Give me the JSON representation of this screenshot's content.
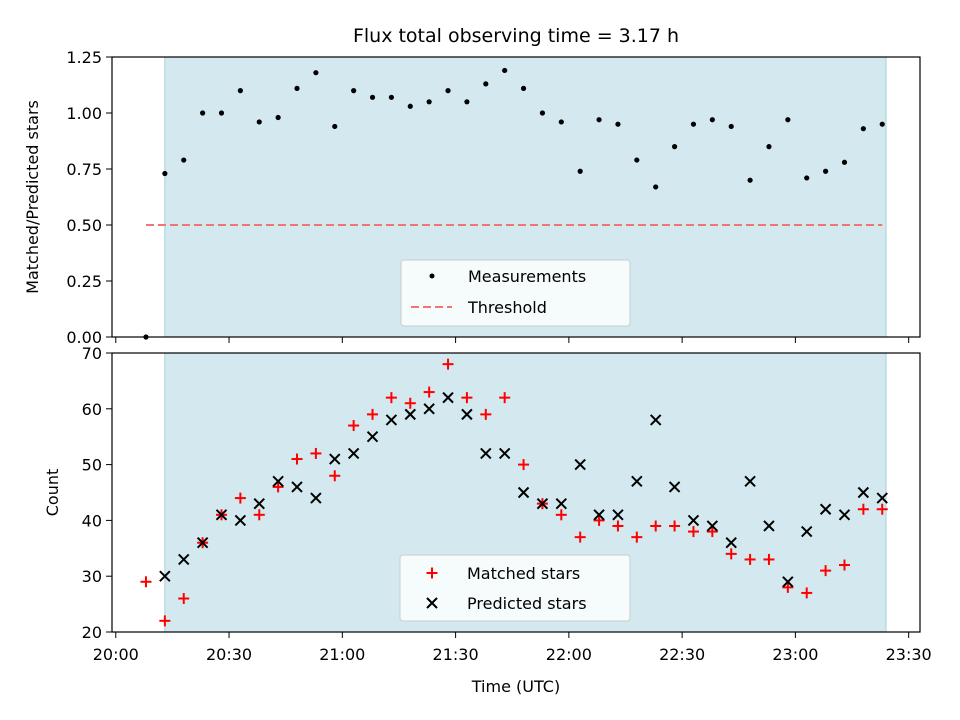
{
  "chart_data": [
    {
      "type": "scatter",
      "title": "Flux total observing time = 3.17 h",
      "xlabel": "",
      "ylabel": "Matched/Predicted stars",
      "ylim": [
        0,
        1.25
      ],
      "yticks": [
        "0.00",
        "0.25",
        "0.50",
        "0.75",
        "1.00",
        "1.25"
      ],
      "xlim": [
        "20:00",
        "23:30"
      ],
      "observing_span": [
        "20:13",
        "23:24"
      ],
      "colors": {
        "span": "#d3e9ef",
        "measurements": "#000000",
        "threshold": "#f07575"
      },
      "series": [
        {
          "name": "Measurements",
          "x": [
            "20:08",
            "20:13",
            "20:18",
            "20:23",
            "20:28",
            "20:33",
            "20:38",
            "20:43",
            "20:48",
            "20:53",
            "20:58",
            "21:03",
            "21:08",
            "21:13",
            "21:18",
            "21:23",
            "21:28",
            "21:33",
            "21:38",
            "21:43",
            "21:48",
            "21:53",
            "21:58",
            "22:03",
            "22:08",
            "22:13",
            "22:18",
            "22:23",
            "22:28",
            "22:33",
            "22:38",
            "22:43",
            "22:48",
            "22:53",
            "22:58",
            "23:03",
            "23:08",
            "23:13",
            "23:18",
            "23:23"
          ],
          "y": [
            0.0,
            0.73,
            0.79,
            1.0,
            1.0,
            1.1,
            0.96,
            0.98,
            1.11,
            1.18,
            0.94,
            1.1,
            1.07,
            1.07,
            1.03,
            1.05,
            1.1,
            1.05,
            1.13,
            1.19,
            1.11,
            1.0,
            0.96,
            0.74,
            0.97,
            0.95,
            0.79,
            0.67,
            0.85,
            0.95,
            0.97,
            0.94,
            0.7,
            0.85,
            0.97,
            0.71,
            0.74,
            0.78,
            0.93,
            0.95
          ]
        },
        {
          "name": "Threshold",
          "x": [
            "20:08",
            "23:23"
          ],
          "y": [
            0.5,
            0.5
          ]
        }
      ],
      "legend": {
        "placement": "bottom-center",
        "entries": [
          "Measurements",
          "Threshold"
        ]
      }
    },
    {
      "type": "scatter",
      "title": "",
      "xlabel": "Time (UTC)",
      "ylabel": "Count",
      "ylim": [
        20,
        70
      ],
      "yticks": [
        "20",
        "30",
        "40",
        "50",
        "60",
        "70"
      ],
      "xlim": [
        "20:00",
        "23:30"
      ],
      "xticks": [
        "20:00",
        "20:30",
        "21:00",
        "21:30",
        "22:00",
        "22:30",
        "23:00",
        "23:30"
      ],
      "observing_span": [
        "20:13",
        "23:24"
      ],
      "colors": {
        "span": "#d3e9ef",
        "matched": "#ff0000",
        "predicted": "#000000"
      },
      "series": [
        {
          "name": "Matched stars",
          "x": [
            "20:08",
            "20:13",
            "20:18",
            "20:23",
            "20:28",
            "20:33",
            "20:38",
            "20:43",
            "20:48",
            "20:53",
            "20:58",
            "21:03",
            "21:08",
            "21:13",
            "21:18",
            "21:23",
            "21:28",
            "21:33",
            "21:38",
            "21:43",
            "21:48",
            "21:53",
            "21:58",
            "22:03",
            "22:08",
            "22:13",
            "22:18",
            "22:23",
            "22:28",
            "22:33",
            "22:38",
            "22:43",
            "22:48",
            "22:53",
            "22:58",
            "23:03",
            "23:08",
            "23:13",
            "23:18",
            "23:23"
          ],
          "y": [
            29,
            22,
            26,
            36,
            41,
            44,
            41,
            46,
            51,
            52,
            48,
            57,
            59,
            62,
            61,
            63,
            68,
            62,
            59,
            62,
            50,
            43,
            41,
            37,
            40,
            39,
            37,
            39,
            39,
            38,
            38,
            34,
            33,
            33,
            28,
            27,
            31,
            32,
            42,
            42
          ]
        },
        {
          "name": "Predicted stars",
          "x": [
            "20:13",
            "20:18",
            "20:23",
            "20:28",
            "20:33",
            "20:38",
            "20:43",
            "20:48",
            "20:53",
            "20:58",
            "21:03",
            "21:08",
            "21:13",
            "21:18",
            "21:23",
            "21:28",
            "21:33",
            "21:38",
            "21:43",
            "21:48",
            "21:53",
            "21:58",
            "22:03",
            "22:08",
            "22:13",
            "22:18",
            "22:23",
            "22:28",
            "22:33",
            "22:38",
            "22:43",
            "22:48",
            "22:53",
            "22:58",
            "23:03",
            "23:08",
            "23:13",
            "23:18",
            "23:23"
          ],
          "y": [
            30,
            33,
            36,
            41,
            40,
            43,
            47,
            46,
            44,
            51,
            52,
            55,
            58,
            59,
            60,
            62,
            59,
            52,
            52,
            45,
            43,
            43,
            50,
            41,
            41,
            47,
            58,
            46,
            40,
            39,
            36,
            47,
            39,
            29,
            38,
            42,
            41,
            45,
            44
          ]
        }
      ],
      "legend": {
        "placement": "bottom-center",
        "entries": [
          "Matched stars",
          "Predicted stars"
        ]
      }
    }
  ]
}
